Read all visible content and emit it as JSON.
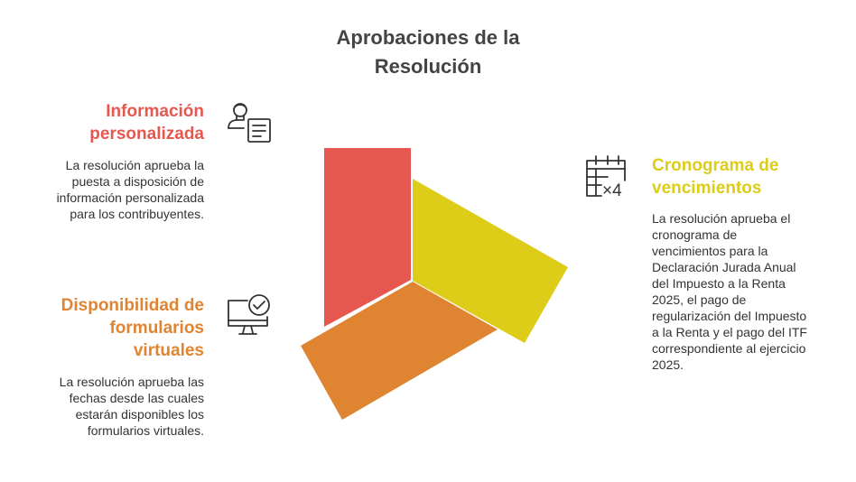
{
  "title": "Aprobaciones de la Resolución",
  "colors": {
    "red": "#E5574F",
    "yellow": "#DDCC18",
    "orange": "#DF8431",
    "icon": "#333333"
  },
  "items": [
    {
      "heading": "Información personalizada",
      "description": "La resolución aprueba la puesta a disposición de información personalizada para los contribuyentes.",
      "icon": "user-document-icon",
      "color": "#E5574F"
    },
    {
      "heading": "Cronograma de vencimientos",
      "description": "La resolución aprueba el cronograma de vencimientos para la Declaración Jurada Anual del Impuesto a la Renta 2025, el pago de regularización del Impuesto a la Renta y el pago del ITF correspondiente al ejercicio 2025.",
      "icon": "calendar-icon",
      "icon_text": "×4",
      "color": "#DDCC18"
    },
    {
      "heading": "Disponibilidad de formularios virtuales",
      "description": "La resolución aprueba las fechas desde las cuales estarán disponibles los formularios virtuales.",
      "icon": "monitor-check-icon",
      "color": "#DF8431"
    }
  ]
}
